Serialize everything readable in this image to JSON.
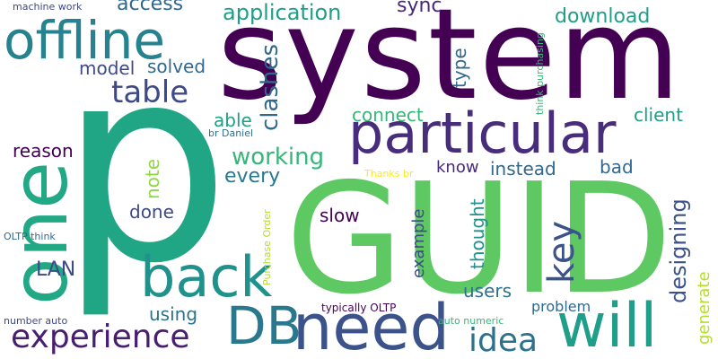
{
  "palette": {
    "dark_purple": "#440154",
    "purple": "#482878",
    "indigo": "#3e4989",
    "blue": "#31688e",
    "teal_blue": "#26828e",
    "teal": "#1f9e89",
    "green_teal": "#35b779",
    "green": "#6ece58",
    "lime": "#b5de2b",
    "yellow": "#fde725"
  },
  "words": [
    "system",
    "GUID",
    "p",
    "one",
    "offline",
    "particular",
    "back",
    "need",
    "will",
    "DB",
    "experience",
    "idea",
    "table",
    "key",
    "application",
    "access",
    "sync",
    "download",
    "model",
    "solved",
    "type",
    "clashes",
    "connect",
    "client",
    "able",
    "reason",
    "note",
    "working",
    "every",
    "know",
    "instead",
    "bad",
    "designing",
    "thought",
    "example",
    "slow",
    "done",
    "LAN",
    "using",
    "users",
    "problem",
    "generate",
    "machine work",
    "br Daniel",
    "Thanks br",
    "OLTP think",
    "think purchasing",
    "Purchase Order",
    "typically OLTP",
    "auto numeric",
    "number auto"
  ]
}
